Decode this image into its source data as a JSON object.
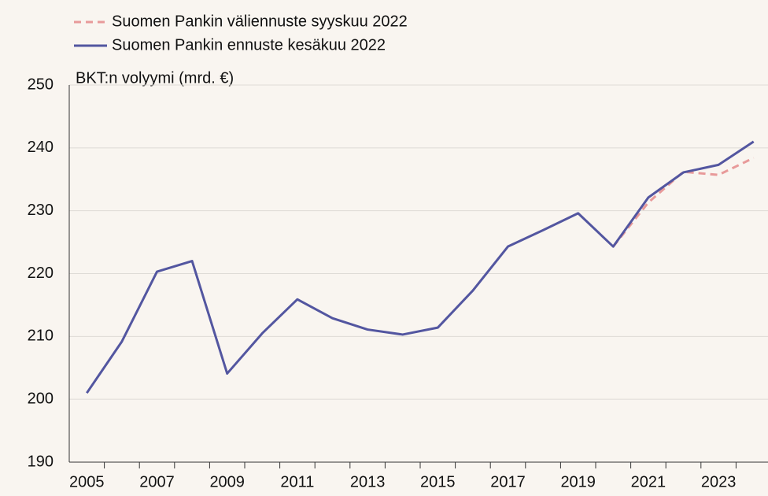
{
  "chart_data": {
    "type": "line",
    "ylabel": "BKT:n volyymi (mrd. €)",
    "categories": [
      "2005",
      null,
      "2007",
      null,
      "2009",
      null,
      "2011",
      null,
      "2013",
      null,
      "2015",
      null,
      "2017",
      null,
      "2019",
      null,
      "2021",
      null,
      "2023",
      null
    ],
    "series": [
      {
        "name": "Suomen Pankin väliennuste syyskuu 2022",
        "color": "#e89a9a",
        "dashed": true,
        "values": [
          null,
          null,
          null,
          null,
          null,
          null,
          null,
          null,
          null,
          null,
          null,
          null,
          null,
          null,
          null,
          224.3,
          231.3,
          236.2,
          235.7,
          238.4
        ]
      },
      {
        "name": "Suomen Pankin ennuste kesäkuu 2022",
        "color": "#5356a0",
        "dashed": false,
        "values": [
          201,
          209.2,
          220.3,
          222,
          204.1,
          210.5,
          215.9,
          212.9,
          211.1,
          210.3,
          211.4,
          217.3,
          224.3,
          226.9,
          229.6,
          224.3,
          232.1,
          236.1,
          237.3,
          241
        ]
      }
    ],
    "ylim": [
      190,
      250
    ],
    "yticks": [
      190,
      200,
      210,
      220,
      230,
      240,
      250
    ],
    "grid": true
  }
}
